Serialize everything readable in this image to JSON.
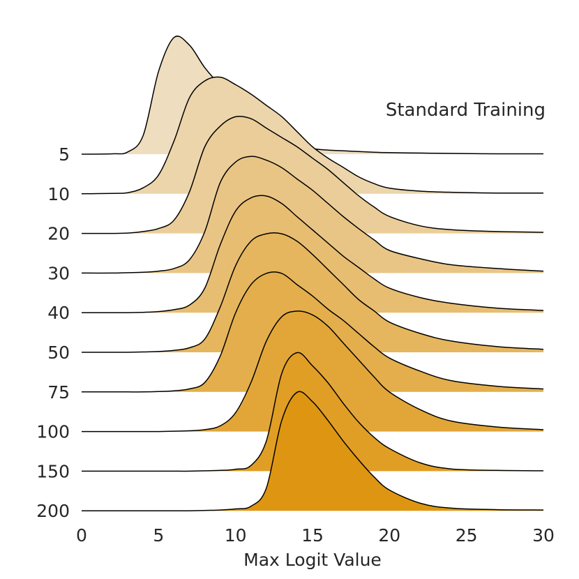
{
  "chart_data": {
    "type": "area",
    "subtype": "ridgeline",
    "annotation": "Standard Training",
    "xlabel": "Max Logit Value",
    "ylabel": "",
    "xlim": [
      0,
      30
    ],
    "x_ticks": [
      "0",
      "5",
      "10",
      "15",
      "20",
      "25",
      "30"
    ],
    "grid": false,
    "legend": "none",
    "colors": {
      "fill_light": "#EEDDBE",
      "fill_dark": "#DE9612",
      "outline": "#000000"
    },
    "x_grid": [
      0,
      2,
      3,
      4,
      5,
      6,
      7,
      8,
      9,
      10,
      11,
      12,
      13,
      14,
      15,
      16,
      17,
      18,
      19,
      20,
      22,
      24,
      27,
      30
    ],
    "ridge_scale_max": 3.3,
    "series": [
      {
        "label": "5",
        "density": [
          0,
          0.01,
          0.06,
          0.5,
          2.2,
          3.1,
          2.9,
          2.3,
          1.85,
          1.55,
          1.3,
          0.85,
          0.5,
          0.3,
          0.15,
          0.11,
          0.09,
          0.07,
          0.05,
          0.04,
          0.03,
          0.02,
          0.01,
          0.01
        ]
      },
      {
        "label": "10",
        "density": [
          0,
          0.01,
          0.03,
          0.16,
          0.5,
          1.4,
          2.55,
          3.0,
          3.1,
          2.9,
          2.65,
          2.35,
          2.05,
          1.65,
          1.25,
          0.95,
          0.7,
          0.45,
          0.27,
          0.15,
          0.07,
          0.04,
          0.02,
          0.02
        ]
      },
      {
        "label": "20",
        "density": [
          0,
          0.0,
          0.01,
          0.05,
          0.13,
          0.35,
          1.1,
          2.3,
          2.85,
          3.1,
          3.05,
          2.8,
          2.55,
          2.3,
          2.0,
          1.7,
          1.35,
          1.0,
          0.7,
          0.45,
          0.2,
          0.1,
          0.05,
          0.03
        ]
      },
      {
        "label": "30",
        "density": [
          0,
          0.0,
          0.01,
          0.02,
          0.05,
          0.12,
          0.35,
          1.1,
          2.4,
          2.95,
          3.1,
          3.0,
          2.8,
          2.5,
          2.2,
          1.85,
          1.5,
          1.18,
          0.88,
          0.6,
          0.38,
          0.22,
          0.12,
          0.05
        ]
      },
      {
        "label": "40",
        "density": [
          0,
          0.0,
          0.0,
          0.01,
          0.03,
          0.08,
          0.2,
          0.65,
          1.8,
          2.7,
          3.05,
          3.1,
          2.9,
          2.55,
          2.2,
          1.85,
          1.5,
          1.2,
          0.9,
          0.65,
          0.4,
          0.25,
          0.12,
          0.06
        ]
      },
      {
        "label": "50",
        "density": [
          0,
          0.0,
          0.0,
          0.01,
          0.02,
          0.05,
          0.12,
          0.35,
          1.2,
          2.3,
          2.95,
          3.15,
          3.15,
          2.95,
          2.6,
          2.2,
          1.8,
          1.4,
          1.1,
          0.8,
          0.5,
          0.3,
          0.15,
          0.08
        ]
      },
      {
        "label": "75",
        "density": [
          0,
          0.0,
          0.0,
          0.0,
          0.01,
          0.03,
          0.08,
          0.25,
          0.95,
          2.1,
          2.85,
          3.15,
          3.15,
          2.85,
          2.55,
          2.2,
          1.9,
          1.55,
          1.2,
          0.9,
          0.55,
          0.3,
          0.15,
          0.08
        ]
      },
      {
        "label": "100",
        "density": [
          0,
          0.0,
          0.0,
          0.0,
          0.0,
          0.01,
          0.02,
          0.05,
          0.15,
          0.5,
          1.3,
          2.4,
          3.05,
          3.2,
          3.1,
          2.8,
          2.35,
          1.9,
          1.45,
          1.05,
          0.58,
          0.28,
          0.12,
          0.05
        ]
      },
      {
        "label": "150",
        "density": [
          0,
          0.0,
          0.0,
          0.0,
          0.0,
          0.0,
          0.0,
          0.01,
          0.02,
          0.05,
          0.15,
          0.8,
          2.6,
          3.15,
          2.8,
          2.35,
          1.8,
          1.3,
          0.9,
          0.6,
          0.22,
          0.06,
          0.02,
          0.01
        ]
      },
      {
        "label": "200",
        "density": [
          0,
          0.0,
          0.0,
          0.0,
          0.0,
          0.0,
          0.0,
          0.01,
          0.02,
          0.05,
          0.12,
          0.6,
          2.4,
          3.15,
          2.9,
          2.4,
          1.85,
          1.35,
          0.9,
          0.55,
          0.2,
          0.07,
          0.03,
          0.02
        ]
      }
    ]
  }
}
